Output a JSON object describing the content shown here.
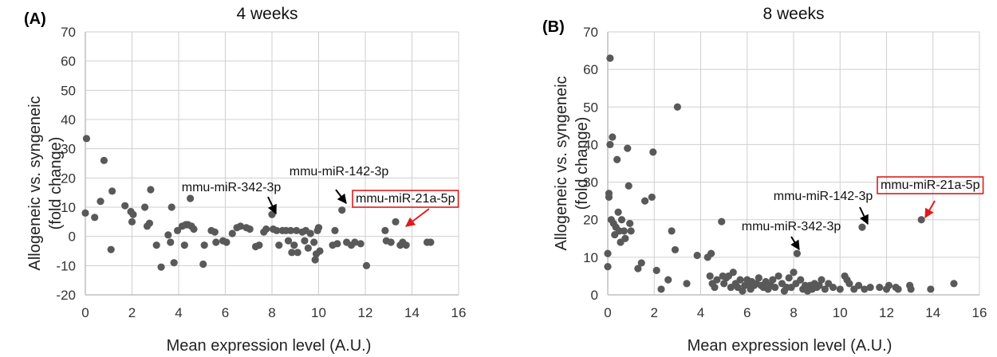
{
  "chart_data": [
    {
      "type": "scatter",
      "panel_label": "(A)",
      "title": "4 weeks",
      "xlabel": "Mean expression level (A.U.)",
      "ylabel_lines": [
        "Allogeneic vs. syngeneic",
        "(fold change)"
      ],
      "xlim": [
        0,
        16
      ],
      "ylim": [
        -20,
        70
      ],
      "xticks": [
        0,
        2,
        4,
        6,
        8,
        10,
        12,
        14,
        16
      ],
      "yticks": [
        -20,
        -10,
        0,
        10,
        20,
        30,
        40,
        50,
        60,
        70
      ],
      "grid": true,
      "point_color": "#595959",
      "points": [
        [
          0,
          8
        ],
        [
          0.05,
          33.5
        ],
        [
          0.4,
          6.5
        ],
        [
          0.65,
          12
        ],
        [
          0.8,
          26
        ],
        [
          1.1,
          -4.5
        ],
        [
          1.15,
          15.5
        ],
        [
          1.7,
          10.5
        ],
        [
          1.95,
          8.5
        ],
        [
          2.0,
          5
        ],
        [
          2.05,
          7.5
        ],
        [
          2.55,
          10
        ],
        [
          2.65,
          3.5
        ],
        [
          2.75,
          4.5
        ],
        [
          2.8,
          16
        ],
        [
          3.05,
          -3
        ],
        [
          3.25,
          -10.5
        ],
        [
          3.55,
          0.5
        ],
        [
          3.65,
          -2
        ],
        [
          3.7,
          10
        ],
        [
          3.8,
          -9
        ],
        [
          3.95,
          2
        ],
        [
          4.15,
          3.5
        ],
        [
          4.25,
          -3
        ],
        [
          4.3,
          4
        ],
        [
          4.4,
          4
        ],
        [
          4.5,
          13
        ],
        [
          4.55,
          3.5
        ],
        [
          4.65,
          2.5
        ],
        [
          5.05,
          -9.5
        ],
        [
          5.1,
          -3
        ],
        [
          5.4,
          2
        ],
        [
          5.55,
          1.5
        ],
        [
          5.6,
          -2
        ],
        [
          5.9,
          -1.5
        ],
        [
          6.05,
          -2
        ],
        [
          6.3,
          1
        ],
        [
          6.5,
          3
        ],
        [
          6.65,
          3.5
        ],
        [
          6.9,
          3
        ],
        [
          7.05,
          2.5
        ],
        [
          7.3,
          -3.5
        ],
        [
          7.45,
          -3
        ],
        [
          7.65,
          1.5
        ],
        [
          7.75,
          2.5
        ],
        [
          8.0,
          7.5
        ],
        [
          8.05,
          2.5
        ],
        [
          8.2,
          2
        ],
        [
          8.3,
          -3
        ],
        [
          8.45,
          2
        ],
        [
          8.6,
          2
        ],
        [
          8.7,
          -1.5
        ],
        [
          8.8,
          2
        ],
        [
          8.85,
          -5.5
        ],
        [
          8.95,
          -3
        ],
        [
          9.05,
          2
        ],
        [
          9.1,
          -5.5
        ],
        [
          9.3,
          1.5
        ],
        [
          9.4,
          -1.5
        ],
        [
          9.45,
          2
        ],
        [
          9.55,
          -4
        ],
        [
          9.65,
          1
        ],
        [
          9.8,
          -2
        ],
        [
          9.85,
          -8
        ],
        [
          9.9,
          -6
        ],
        [
          9.95,
          2
        ],
        [
          10.0,
          3
        ],
        [
          10.05,
          -5
        ],
        [
          10.6,
          -3
        ],
        [
          10.7,
          2
        ],
        [
          10.8,
          -2.5
        ],
        [
          11.0,
          9
        ],
        [
          11.2,
          -2
        ],
        [
          11.4,
          -3
        ],
        [
          11.55,
          -2
        ],
        [
          11.8,
          -2.5
        ],
        [
          12.05,
          -10
        ],
        [
          12.85,
          2
        ],
        [
          12.9,
          -1.5
        ],
        [
          13.1,
          -2
        ],
        [
          13.3,
          5
        ],
        [
          13.5,
          -3
        ],
        [
          13.6,
          -2
        ],
        [
          13.75,
          -3
        ],
        [
          14.65,
          -2
        ],
        [
          14.8,
          -2
        ]
      ],
      "annotations": [
        {
          "text": "mmu-miR-342-3p",
          "x": 8.0,
          "y": 7.5
        },
        {
          "text": "mmu-miR-142-3p",
          "x": 11.0,
          "y": 9
        },
        {
          "text": "mmu-miR-21a-5p",
          "x": 13.3,
          "y": 5,
          "boxed": true
        }
      ]
    },
    {
      "type": "scatter",
      "panel_label": "(B)",
      "title": "8 weeks",
      "xlabel": "Mean expression level (A.U.)",
      "ylabel_lines": [
        "Allogeneic vs. syngeneic",
        "(fold change)"
      ],
      "xlim": [
        0,
        16
      ],
      "ylim": [
        0,
        70
      ],
      "xticks": [
        0,
        2,
        4,
        6,
        8,
        10,
        12,
        14,
        16
      ],
      "yticks": [
        0,
        10,
        20,
        30,
        40,
        50,
        60,
        70
      ],
      "grid": true,
      "point_color": "#595959",
      "points": [
        [
          0.0,
          7.5
        ],
        [
          0.0,
          11
        ],
        [
          0.05,
          26
        ],
        [
          0.05,
          27
        ],
        [
          0.1,
          40
        ],
        [
          0.1,
          63
        ],
        [
          0.15,
          20
        ],
        [
          0.2,
          42
        ],
        [
          0.25,
          19
        ],
        [
          0.3,
          16
        ],
        [
          0.35,
          18
        ],
        [
          0.4,
          36
        ],
        [
          0.45,
          22
        ],
        [
          0.5,
          17
        ],
        [
          0.55,
          14
        ],
        [
          0.6,
          20
        ],
        [
          0.7,
          17
        ],
        [
          0.75,
          15
        ],
        [
          0.85,
          39
        ],
        [
          0.9,
          29
        ],
        [
          0.95,
          19
        ],
        [
          1.0,
          17
        ],
        [
          1.3,
          7
        ],
        [
          1.45,
          8.5
        ],
        [
          1.6,
          25
        ],
        [
          1.9,
          26
        ],
        [
          1.95,
          38
        ],
        [
          2.1,
          6.5
        ],
        [
          2.3,
          1.5
        ],
        [
          2.6,
          4
        ],
        [
          2.75,
          17
        ],
        [
          2.9,
          12
        ],
        [
          3.0,
          50
        ],
        [
          3.4,
          3
        ],
        [
          3.85,
          10.5
        ],
        [
          4.3,
          10
        ],
        [
          4.4,
          5
        ],
        [
          4.45,
          11
        ],
        [
          4.5,
          3
        ],
        [
          4.6,
          2
        ],
        [
          4.7,
          4
        ],
        [
          4.9,
          19.5
        ],
        [
          4.95,
          5
        ],
        [
          5.0,
          3
        ],
        [
          5.1,
          4.5
        ],
        [
          5.2,
          5
        ],
        [
          5.3,
          2
        ],
        [
          5.4,
          6
        ],
        [
          5.5,
          3
        ],
        [
          5.6,
          2
        ],
        [
          5.7,
          4
        ],
        [
          5.8,
          1
        ],
        [
          5.9,
          2.5
        ],
        [
          6.0,
          4
        ],
        [
          6.1,
          3
        ],
        [
          6.15,
          1.5
        ],
        [
          6.2,
          3.5
        ],
        [
          6.3,
          2.5
        ],
        [
          6.4,
          3
        ],
        [
          6.5,
          4.5
        ],
        [
          6.6,
          2.5
        ],
        [
          6.7,
          2
        ],
        [
          6.8,
          3.5
        ],
        [
          6.9,
          1.5
        ],
        [
          7.0,
          2.5
        ],
        [
          7.1,
          4
        ],
        [
          7.2,
          2
        ],
        [
          7.35,
          5
        ],
        [
          7.5,
          3
        ],
        [
          7.6,
          1
        ],
        [
          7.7,
          2
        ],
        [
          7.8,
          4.5
        ],
        [
          7.9,
          2
        ],
        [
          8.0,
          6
        ],
        [
          8.1,
          3
        ],
        [
          8.15,
          11
        ],
        [
          8.3,
          4
        ],
        [
          8.4,
          1.5
        ],
        [
          8.5,
          2.5
        ],
        [
          8.6,
          1
        ],
        [
          8.7,
          2.5
        ],
        [
          8.8,
          1.5
        ],
        [
          8.9,
          3
        ],
        [
          9.0,
          2
        ],
        [
          9.1,
          2.5
        ],
        [
          9.2,
          4
        ],
        [
          9.35,
          1.5
        ],
        [
          9.5,
          3
        ],
        [
          9.7,
          2
        ],
        [
          10.0,
          1.5
        ],
        [
          10.2,
          5
        ],
        [
          10.3,
          4
        ],
        [
          10.4,
          3
        ],
        [
          10.6,
          1.5
        ],
        [
          10.8,
          2.5
        ],
        [
          10.95,
          18
        ],
        [
          11.05,
          1.5
        ],
        [
          11.3,
          2
        ],
        [
          11.7,
          2
        ],
        [
          12.0,
          1.5
        ],
        [
          12.1,
          2.5
        ],
        [
          12.4,
          2
        ],
        [
          12.5,
          1.5
        ],
        [
          13.0,
          2.5
        ],
        [
          13.05,
          1.5
        ],
        [
          13.5,
          20
        ],
        [
          13.9,
          1.5
        ],
        [
          14.9,
          3
        ]
      ],
      "annotations": [
        {
          "text": "mmu-miR-142-3p",
          "x": 10.95,
          "y": 18
        },
        {
          "text": "mmu-miR-342-3p",
          "x": 8.15,
          "y": 11
        },
        {
          "text": "mmu-miR-21a-5p",
          "x": 13.5,
          "y": 20,
          "boxed": true
        }
      ]
    }
  ]
}
